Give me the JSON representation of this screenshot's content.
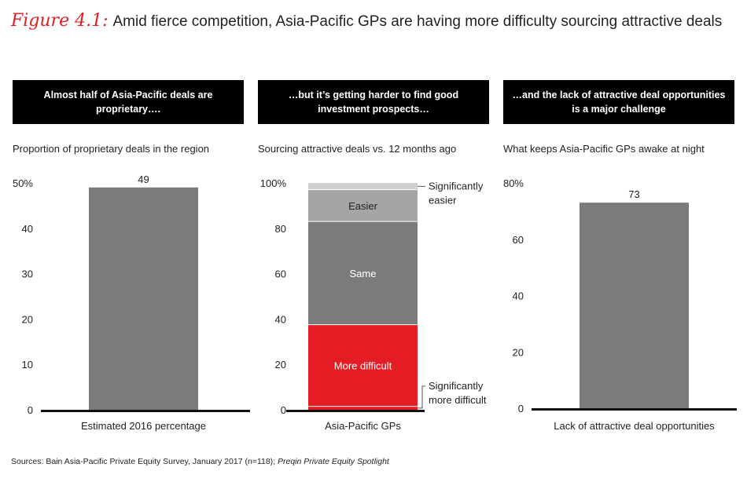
{
  "title": {
    "figure_label": "Figure 4.1:",
    "text": "Amid fierce competition, Asia-Pacific GPs are having more difficulty sourcing attractive deals"
  },
  "panels": [
    {
      "header": "Almost half of  Asia-Pacific deals are proprietary….",
      "subtitle": "Proportion of proprietary deals in the region"
    },
    {
      "header": "…but it’s getting harder to find good investment prospects…",
      "subtitle": "Sourcing attractive deals vs. 12 months ago"
    },
    {
      "header": "…and the lack of attractive deal opportunities is a major challenge",
      "subtitle": "What keeps Asia-Pacific GPs awake at night"
    }
  ],
  "source": {
    "prefix": "Sources: Bain Asia-Pacific Private Equity Survey, January 2017 (n=118); ",
    "italic": "Preqin Private Equity Spotlight"
  },
  "colors": {
    "accent_red": "#e31d23",
    "dark_gray": "#7b7b7d",
    "mid_gray": "#a5a5a7",
    "light_gray": "#d0d0d2",
    "axis": "#111111"
  },
  "chart_data": [
    {
      "type": "bar",
      "categories": [
        "Estimated 2016 percentage"
      ],
      "values": [
        49
      ],
      "data_labels": [
        "49"
      ],
      "ylim": [
        0,
        50
      ],
      "yticks": [
        "0",
        "10",
        "20",
        "30",
        "40",
        "50%"
      ],
      "tick_values": [
        0,
        10,
        20,
        30,
        40,
        50
      ],
      "color": "#7b7b7d"
    },
    {
      "type": "bar",
      "stacked": true,
      "categories": [
        "Asia-Pacific GPs"
      ],
      "ylim": [
        0,
        100
      ],
      "yticks": [
        "0",
        "20",
        "40",
        "60",
        "80",
        "100%"
      ],
      "tick_values": [
        0,
        20,
        40,
        60,
        80,
        100
      ],
      "series": [
        {
          "name": "Significantly more difficult",
          "values": [
            1.5
          ],
          "color": "#e31d23",
          "inside_label": "",
          "callout": "Significantly more difficult"
        },
        {
          "name": "More difficult",
          "values": [
            36
          ],
          "color": "#e31d23",
          "inside_label": "More difficult",
          "callout": ""
        },
        {
          "name": "Same",
          "values": [
            45.5
          ],
          "color": "#7b7b7d",
          "inside_label": "Same",
          "callout": ""
        },
        {
          "name": "Easier",
          "values": [
            14
          ],
          "color": "#a5a5a7",
          "inside_label": "Easier",
          "callout": ""
        },
        {
          "name": "Significantly easier",
          "values": [
            3
          ],
          "color": "#d0d0d2",
          "inside_label": "",
          "callout": "Significantly easier"
        }
      ]
    },
    {
      "type": "bar",
      "categories": [
        "Lack of attractive deal opportunities"
      ],
      "values": [
        73
      ],
      "data_labels": [
        "73"
      ],
      "ylim": [
        0,
        80
      ],
      "yticks": [
        "0",
        "20",
        "40",
        "60",
        "80%"
      ],
      "tick_values": [
        0,
        20,
        40,
        60,
        80
      ],
      "color": "#7b7b7d"
    }
  ]
}
